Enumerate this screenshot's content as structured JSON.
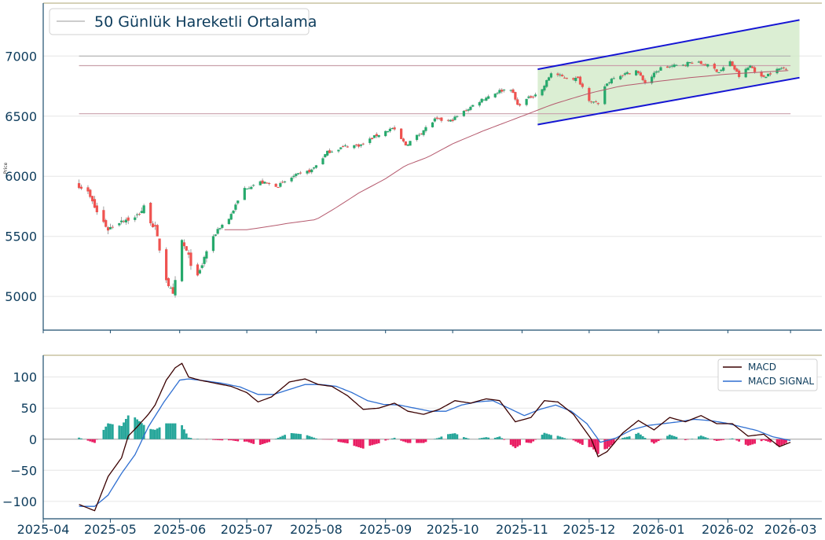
{
  "colors": {
    "up": "#26a96c",
    "down": "#ef5350",
    "wick": "#888888",
    "ma": "#b55a6e",
    "hline": "#c9a1ab",
    "hline_gray": "#b0b0b0",
    "channel": "#1515d4",
    "channel_fill": "#cfe8c4",
    "macd": "#3a0000",
    "signal": "#2f6fd1",
    "hist_pos": "#26a69a",
    "hist_neg": "#e91e63",
    "axis": "#1d4e6e",
    "tick_text": "#0d3c5c",
    "frame_top": "#c8c3a0",
    "grid": "#e6e6e6"
  },
  "chart_data": [
    {
      "type": "candlestick",
      "legend": {
        "label": "50 Günlük Hareketli Ortalama",
        "placement": "top-left"
      },
      "ylabel": "Price",
      "ylim": [
        4720,
        7440
      ],
      "yticks": [
        "5000",
        "5500",
        "6000",
        "6500",
        "7000"
      ],
      "xlim": [
        "2025-04-01",
        "2026-03-15"
      ],
      "xticks": [
        "2025-04",
        "2025-05",
        "2025-06",
        "2025-07",
        "2025-08",
        "2025-09",
        "2025-10",
        "2025-11",
        "2025-12",
        "2026-01",
        "2026-02",
        "2026-03"
      ],
      "grid": true,
      "close_anchors": [
        [
          "2025-04-17",
          5930
        ],
        [
          "2025-04-21",
          5860
        ],
        [
          "2025-04-25",
          5700
        ],
        [
          "2025-04-30",
          5560
        ],
        [
          "2025-05-06",
          5640
        ],
        [
          "2025-05-12",
          5650
        ],
        [
          "2025-05-16",
          5740
        ],
        [
          "2025-05-21",
          5560
        ],
        [
          "2025-05-26",
          5150
        ],
        [
          "2025-05-29",
          5000
        ],
        [
          "2025-06-02",
          5460
        ],
        [
          "2025-06-06",
          5280
        ],
        [
          "2025-06-09",
          5150
        ],
        [
          "2025-06-13",
          5380
        ],
        [
          "2025-06-18",
          5560
        ],
        [
          "2025-06-23",
          5650
        ],
        [
          "2025-06-30",
          5900
        ],
        [
          "2025-07-07",
          5950
        ],
        [
          "2025-07-15",
          5920
        ],
        [
          "2025-07-22",
          6000
        ],
        [
          "2025-07-30",
          6050
        ],
        [
          "2025-08-06",
          6200
        ],
        [
          "2025-08-14",
          6250
        ],
        [
          "2025-08-21",
          6260
        ],
        [
          "2025-08-28",
          6340
        ],
        [
          "2025-09-04",
          6400
        ],
        [
          "2025-09-10",
          6260
        ],
        [
          "2025-09-16",
          6350
        ],
        [
          "2025-09-23",
          6470
        ],
        [
          "2025-09-30",
          6460
        ],
        [
          "2025-10-07",
          6550
        ],
        [
          "2025-10-14",
          6640
        ],
        [
          "2025-10-22",
          6710
        ],
        [
          "2025-10-27",
          6730
        ],
        [
          "2025-10-30",
          6590
        ],
        [
          "2025-11-04",
          6650
        ],
        [
          "2025-11-10",
          6720
        ],
        [
          "2025-11-14",
          6860
        ],
        [
          "2025-11-20",
          6820
        ],
        [
          "2025-11-26",
          6810
        ],
        [
          "2025-12-01",
          6640
        ],
        [
          "2025-12-05",
          6590
        ],
        [
          "2025-12-08",
          6750
        ],
        [
          "2025-12-12",
          6830
        ],
        [
          "2025-12-17",
          6850
        ],
        [
          "2025-12-22",
          6880
        ],
        [
          "2025-12-26",
          6780
        ],
        [
          "2026-01-02",
          6900
        ],
        [
          "2026-01-09",
          6920
        ],
        [
          "2026-01-16",
          6950
        ],
        [
          "2026-01-22",
          6930
        ],
        [
          "2026-01-28",
          6870
        ],
        [
          "2026-02-02",
          6950
        ],
        [
          "2026-02-06",
          6830
        ],
        [
          "2026-02-11",
          6920
        ],
        [
          "2026-02-16",
          6820
        ],
        [
          "2026-02-20",
          6860
        ],
        [
          "2026-02-25",
          6900
        ],
        [
          "2026-03-01",
          6910
        ]
      ],
      "ma_anchors": [
        [
          "2025-06-21",
          5555
        ],
        [
          "2025-07-01",
          5555
        ],
        [
          "2025-07-10",
          5580
        ],
        [
          "2025-07-20",
          5610
        ],
        [
          "2025-08-01",
          5640
        ],
        [
          "2025-08-10",
          5740
        ],
        [
          "2025-08-20",
          5860
        ],
        [
          "2025-09-01",
          5980
        ],
        [
          "2025-09-10",
          6090
        ],
        [
          "2025-09-20",
          6160
        ],
        [
          "2025-10-01",
          6270
        ],
        [
          "2025-10-15",
          6380
        ],
        [
          "2025-11-01",
          6500
        ],
        [
          "2025-11-15",
          6600
        ],
        [
          "2025-12-01",
          6690
        ],
        [
          "2025-12-15",
          6750
        ],
        [
          "2026-01-01",
          6790
        ],
        [
          "2026-01-15",
          6820
        ],
        [
          "2026-02-01",
          6850
        ],
        [
          "2026-02-15",
          6865
        ],
        [
          "2026-03-01",
          6880
        ]
      ],
      "horizontal_lines": [
        {
          "y": 7000,
          "from": "2025-04-17",
          "to": "2026-03-01",
          "color": "gray"
        },
        {
          "y": 6920,
          "from": "2025-04-17",
          "to": "2026-03-01",
          "color": "rose"
        },
        {
          "y": 6520,
          "from": "2025-04-17",
          "to": "2026-03-01",
          "color": "rose"
        }
      ],
      "channel": {
        "x": [
          "2025-11-08",
          "2026-03-05"
        ],
        "upper": [
          6890,
          7300
        ],
        "lower": [
          6430,
          6820
        ]
      }
    },
    {
      "type": "line+histogram",
      "series": [
        {
          "name": "MACD",
          "anchors": [
            [
              "2025-04-17",
              -105
            ],
            [
              "2025-04-24",
              -115
            ],
            [
              "2025-04-30",
              -60
            ],
            [
              "2025-05-06",
              -30
            ],
            [
              "2025-05-09",
              5
            ],
            [
              "2025-05-13",
              20
            ],
            [
              "2025-05-18",
              40
            ],
            [
              "2025-05-21",
              55
            ],
            [
              "2025-05-26",
              95
            ],
            [
              "2025-05-30",
              115
            ],
            [
              "2025-06-02",
              122
            ],
            [
              "2025-06-05",
              100
            ],
            [
              "2025-06-10",
              95
            ],
            [
              "2025-06-17",
              90
            ],
            [
              "2025-06-24",
              85
            ],
            [
              "2025-07-01",
              75
            ],
            [
              "2025-07-06",
              60
            ],
            [
              "2025-07-12",
              68
            ],
            [
              "2025-07-20",
              92
            ],
            [
              "2025-07-27",
              97
            ],
            [
              "2025-08-02",
              88
            ],
            [
              "2025-08-08",
              85
            ],
            [
              "2025-08-15",
              70
            ],
            [
              "2025-08-22",
              48
            ],
            [
              "2025-08-29",
              50
            ],
            [
              "2025-09-05",
              58
            ],
            [
              "2025-09-11",
              45
            ],
            [
              "2025-09-18",
              40
            ],
            [
              "2025-09-25",
              48
            ],
            [
              "2025-10-02",
              62
            ],
            [
              "2025-10-09",
              58
            ],
            [
              "2025-10-16",
              65
            ],
            [
              "2025-10-22",
              62
            ],
            [
              "2025-10-29",
              28
            ],
            [
              "2025-11-05",
              35
            ],
            [
              "2025-11-11",
              62
            ],
            [
              "2025-11-17",
              60
            ],
            [
              "2025-11-24",
              40
            ],
            [
              "2025-12-02",
              0
            ],
            [
              "2025-12-05",
              -28
            ],
            [
              "2025-12-09",
              -20
            ],
            [
              "2025-12-16",
              10
            ],
            [
              "2025-12-23",
              30
            ],
            [
              "2025-12-30",
              15
            ],
            [
              "2026-01-06",
              35
            ],
            [
              "2026-01-13",
              28
            ],
            [
              "2026-01-20",
              38
            ],
            [
              "2026-01-27",
              25
            ],
            [
              "2026-02-03",
              25
            ],
            [
              "2026-02-10",
              5
            ],
            [
              "2026-02-17",
              8
            ],
            [
              "2026-02-24",
              -12
            ],
            [
              "2026-03-01",
              -5
            ]
          ]
        },
        {
          "name": "MACD SIGNAL",
          "anchors": [
            [
              "2025-04-17",
              -108
            ],
            [
              "2025-04-24",
              -108
            ],
            [
              "2025-04-30",
              -90
            ],
            [
              "2025-05-06",
              -55
            ],
            [
              "2025-05-12",
              -25
            ],
            [
              "2025-05-18",
              20
            ],
            [
              "2025-05-25",
              60
            ],
            [
              "2025-06-01",
              95
            ],
            [
              "2025-06-05",
              97
            ],
            [
              "2025-06-12",
              94
            ],
            [
              "2025-06-20",
              90
            ],
            [
              "2025-06-28",
              84
            ],
            [
              "2025-07-06",
              72
            ],
            [
              "2025-07-13",
              72
            ],
            [
              "2025-07-20",
              80
            ],
            [
              "2025-07-27",
              88
            ],
            [
              "2025-08-03",
              88
            ],
            [
              "2025-08-10",
              85
            ],
            [
              "2025-08-17",
              75
            ],
            [
              "2025-08-24",
              62
            ],
            [
              "2025-08-31",
              56
            ],
            [
              "2025-09-07",
              55
            ],
            [
              "2025-09-14",
              50
            ],
            [
              "2025-09-21",
              45
            ],
            [
              "2025-09-28",
              45
            ],
            [
              "2025-10-05",
              55
            ],
            [
              "2025-10-12",
              60
            ],
            [
              "2025-10-19",
              62
            ],
            [
              "2025-10-26",
              50
            ],
            [
              "2025-11-02",
              38
            ],
            [
              "2025-11-09",
              48
            ],
            [
              "2025-11-16",
              55
            ],
            [
              "2025-11-23",
              45
            ],
            [
              "2025-11-30",
              25
            ],
            [
              "2025-12-06",
              -5
            ],
            [
              "2025-12-13",
              2
            ],
            [
              "2025-12-20",
              15
            ],
            [
              "2025-12-27",
              22
            ],
            [
              "2026-01-03",
              25
            ],
            [
              "2026-01-10",
              28
            ],
            [
              "2026-01-17",
              32
            ],
            [
              "2026-01-24",
              30
            ],
            [
              "2026-01-31",
              26
            ],
            [
              "2026-02-07",
              20
            ],
            [
              "2026-02-14",
              14
            ],
            [
              "2026-02-21",
              4
            ],
            [
              "2026-03-01",
              -2
            ]
          ]
        }
      ],
      "ylim": [
        -128,
        135
      ],
      "yticks": [
        "100",
        "50",
        "0",
        "−50",
        "−100"
      ],
      "legend_placement": "top-right",
      "grid": true
    }
  ]
}
